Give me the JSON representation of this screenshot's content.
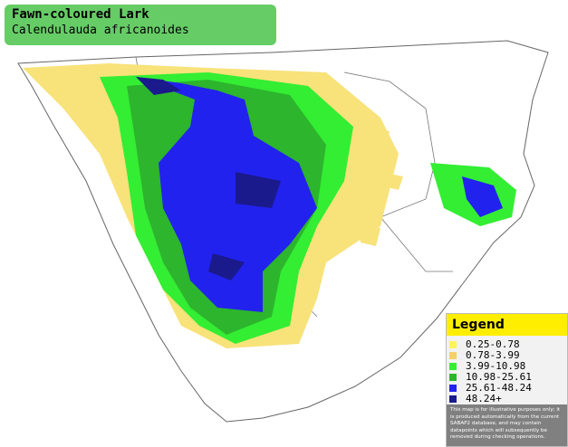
{
  "header": {
    "title": "Fawn-coloured Lark",
    "subtitle": "Calendulauda africanoides"
  },
  "legend": {
    "title": "Legend",
    "items": [
      {
        "label": "0.25-0.78",
        "color": "#fff35a"
      },
      {
        "label": "0.78-3.99",
        "color": "#f5d06a"
      },
      {
        "label": "3.99-10.98",
        "color": "#33ee33"
      },
      {
        "label": "10.98-25.61",
        "color": "#2db52d"
      },
      {
        "label": "25.61-48.24",
        "color": "#2222ee"
      },
      {
        "label": "48.24+",
        "color": "#1a1a8c"
      }
    ],
    "disclaimer": "This map is for illustrative purposes only; it is produced automatically from the current SABAP2 database, and may contain datapoints which will subsequently be removed during checking operations."
  }
}
